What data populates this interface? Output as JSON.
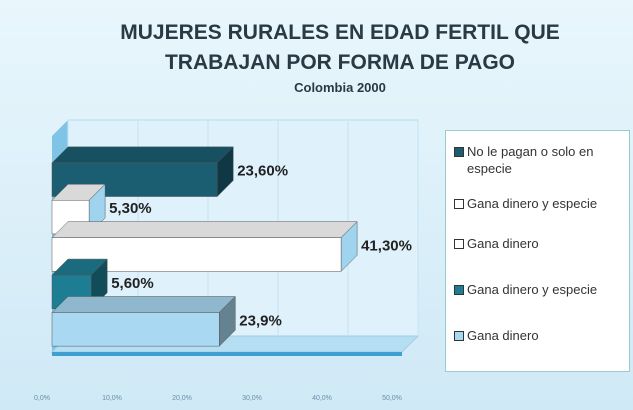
{
  "chart_data": {
    "type": "bar",
    "orientation": "horizontal",
    "title": "MUJERES RURALES EN EDAD FERTIL QUE TRABAJAN POR FORMA DE PAGO",
    "subtitle": "Colombia 2000",
    "categories": [
      "No le pagan o solo en especie",
      "Gana dinero y especie",
      "Gana dinero",
      "Gana dinero y especie",
      "Gana dinero"
    ],
    "values": [
      23.6,
      5.3,
      41.3,
      5.6,
      23.9
    ],
    "value_labels": [
      "23,60%",
      "5,30%",
      "41,30%",
      "5,60%",
      "23,9%"
    ],
    "colors": [
      "#1b5e72",
      "#ffffff",
      "#ffffff",
      "#1d7e93",
      "#a8d8f2"
    ],
    "xlim": [
      0,
      50
    ],
    "xticks": [
      {
        "value": 0,
        "label": "0,0%"
      },
      {
        "value": 10,
        "label": "10,0%"
      },
      {
        "value": 20,
        "label": "20,0%"
      },
      {
        "value": 30,
        "label": "30,0%"
      },
      {
        "value": 40,
        "label": "40,0%"
      },
      {
        "value": 50,
        "label": "50,0%"
      }
    ],
    "grid": true,
    "legend": "right"
  }
}
